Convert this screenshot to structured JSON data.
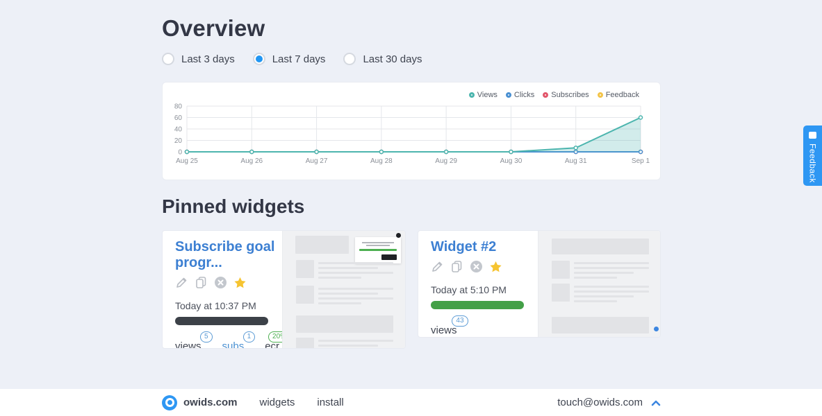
{
  "page": {
    "title": "Overview"
  },
  "filters": {
    "options": [
      {
        "label": "Last 3 days",
        "selected": false
      },
      {
        "label": "Last 7 days",
        "selected": true
      },
      {
        "label": "Last 30 days",
        "selected": false
      }
    ]
  },
  "chart_data": {
    "type": "line",
    "categories": [
      "Aug 25",
      "Aug 26",
      "Aug 27",
      "Aug 28",
      "Aug 29",
      "Aug 30",
      "Aug 31",
      "Sep 1"
    ],
    "series": [
      {
        "name": "Views",
        "color": "#4cb5ae",
        "values": [
          0,
          0,
          0,
          0,
          0,
          0,
          7,
          60
        ],
        "area": true
      },
      {
        "name": "Clicks",
        "color": "#4a90d2",
        "values": [
          0,
          0,
          0,
          0,
          0,
          0,
          0,
          0
        ]
      },
      {
        "name": "Subscribes",
        "color": "#e2566b",
        "values": [
          0,
          0,
          0,
          0,
          0,
          0,
          0,
          0
        ]
      },
      {
        "name": "Feedback",
        "color": "#f3c449",
        "values": [
          0,
          0,
          0,
          0,
          0,
          0,
          0,
          0
        ]
      }
    ],
    "ylim": [
      0,
      80
    ],
    "yticks": [
      0,
      20,
      40,
      60,
      80
    ],
    "title": "",
    "xlabel": "",
    "ylabel": "",
    "legend_position": "top-right",
    "grid": true
  },
  "pinned": {
    "heading": "Pinned widgets",
    "widgets": [
      {
        "title": "Subscribe goal progr...",
        "timestamp": "Today at 10:37 PM",
        "bar_color": "#3c4148",
        "stats": [
          {
            "label": "views",
            "badge": "5",
            "label_color": "#3f4450",
            "badge_color": "#5b9bd5"
          },
          {
            "label": "subs",
            "badge": "1",
            "label_color": "#4a90d2",
            "badge_color": "#5b9bd5"
          },
          {
            "label": "ecr",
            "badge": "20%",
            "label_color": "#3f4450",
            "badge_color": "#4caf50"
          }
        ]
      },
      {
        "title": "Widget #2",
        "timestamp": "Today at 5:10 PM",
        "bar_color": "#43a047",
        "stats": [
          {
            "label": "views",
            "badge": "43",
            "label_color": "#3f4450",
            "badge_color": "#5b9bd5"
          }
        ]
      }
    ]
  },
  "footer": {
    "brand": "owids.com",
    "links": [
      "widgets",
      "install"
    ],
    "email": "touch@owids.com"
  },
  "feedback_tab": {
    "label": "Feedback",
    "color": "#2e97f3"
  }
}
